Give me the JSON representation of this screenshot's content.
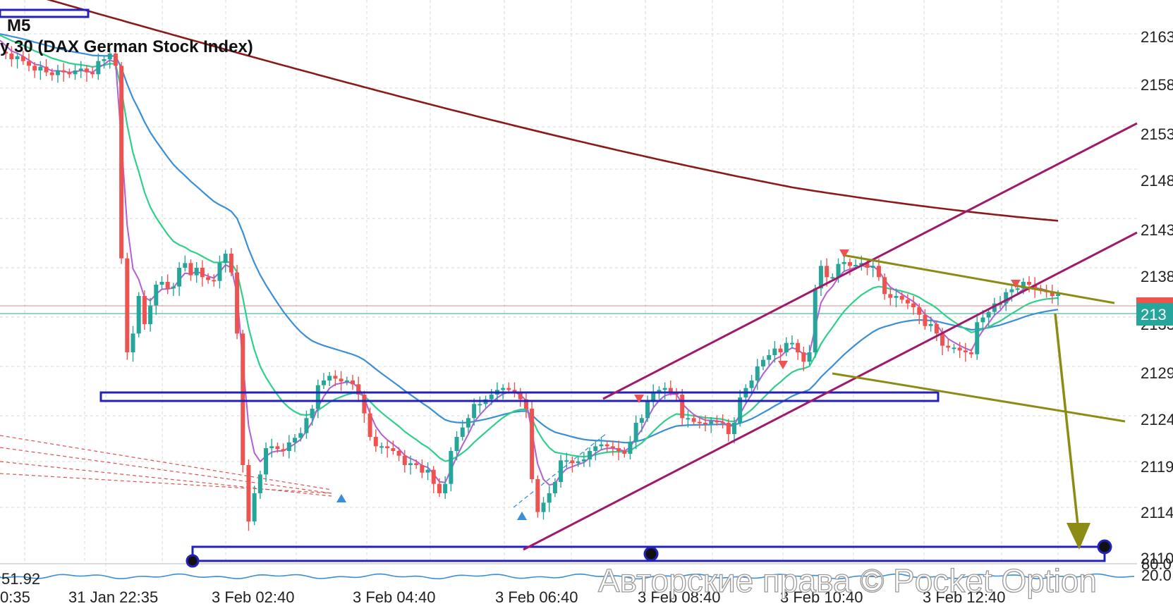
{
  "header": {
    "timeframe": "M5",
    "instrument": "y 30 (DAX German Stock Index)"
  },
  "colors": {
    "up": "#26a69a",
    "down": "#ef5350",
    "ma_fast": "#b25fd6",
    "ma_mid": "#2ed08a",
    "ma_slow": "#3a8fd6",
    "ma_long": "#8b1a1a",
    "channel": "#a0196a",
    "olive": "#8c8c14",
    "zone": "#2222bb",
    "price_tag": "#26a69a",
    "bid_tag": "#ef5350"
  },
  "axes": {
    "x_ticks": [
      "0:35",
      "31 Jan 22:35",
      "3 Feb 02:40",
      "3 Feb 04:40",
      "3 Feb 06:40",
      "3 Feb 08:40",
      "3 Feb 10:40",
      "3 Feb 12:40"
    ],
    "y_ticks": [
      "2163",
      "2158",
      "2153",
      "2148",
      "2143",
      "2138",
      "2133",
      "2129",
      "2124",
      "2119",
      "2114",
      "2110"
    ]
  },
  "price_tag": {
    "current": "213",
    "bid": "213"
  },
  "oscillator": {
    "value_label": "51.92",
    "right_labels": [
      "80.0",
      "20.0"
    ]
  },
  "watermark": "Авторские права © Pocket Option",
  "chart_data": {
    "type": "candlestick",
    "title": "y 30 (DAX German Stock Index)",
    "timeframe": "M5",
    "ylim": [
      21090,
      21660
    ],
    "close": [
      21620,
      21618,
      21612,
      21615,
      21610,
      21605,
      21600,
      21604,
      21598,
      21595,
      21600,
      21598,
      21596,
      21600,
      21602,
      21598,
      21596,
      21610,
      21612,
      21618,
      21605,
      21400,
      21300,
      21320,
      21360,
      21330,
      21350,
      21372,
      21375,
      21368,
      21370,
      21390,
      21395,
      21382,
      21390,
      21380,
      21377,
      21376,
      21395,
      21405,
      21385,
      21320,
      21180,
      21120,
      21150,
      21170,
      21198,
      21200,
      21197,
      21195,
      21204,
      21209,
      21214,
      21230,
      21240,
      21265,
      21270,
      21275,
      21272,
      21269,
      21270,
      21266,
      21255,
      21235,
      21210,
      21200,
      21200,
      21198,
      21195,
      21190,
      21180,
      21182,
      21180,
      21172,
      21175,
      21160,
      21150,
      21160,
      21195,
      21210,
      21220,
      21230,
      21245,
      21245,
      21250,
      21255,
      21260,
      21262,
      21260,
      21258,
      21250,
      21240,
      21165,
      21130,
      21140,
      21150,
      21162,
      21185,
      21185,
      21182,
      21184,
      21186,
      21195,
      21200,
      21202,
      21200,
      21198,
      21195,
      21192,
      21205,
      21225,
      21230,
      21248,
      21258,
      21260,
      21262,
      21258,
      21255,
      21230,
      21230,
      21226,
      21225,
      21224,
      21227,
      21226,
      21225,
      21213,
      21225,
      21252,
      21262,
      21270,
      21285,
      21292,
      21297,
      21304,
      21300,
      21310,
      21310,
      21300,
      21290,
      21300,
      21368,
      21392,
      21380,
      21380,
      21394,
      21396,
      21392,
      21393,
      21395,
      21390,
      21392,
      21380,
      21362,
      21358,
      21360,
      21356,
      21352,
      21348,
      21340,
      21328,
      21330,
      21320,
      21307,
      21305,
      21305,
      21302,
      21300,
      21298,
      21332,
      21337,
      21343,
      21352,
      21352,
      21364,
      21367,
      21368,
      21375,
      21372,
      21368,
      21366,
      21364,
      21360,
      21362
    ],
    "series": [
      {
        "name": "MA fast"
      },
      {
        "name": "MA mid"
      },
      {
        "name": "MA slow"
      },
      {
        "name": "MA long"
      }
    ],
    "grid": true,
    "annotations": [
      "support zone ~21285",
      "support zone ~21110",
      "ascending channel",
      "descending channel",
      "projected drop arrow"
    ]
  }
}
